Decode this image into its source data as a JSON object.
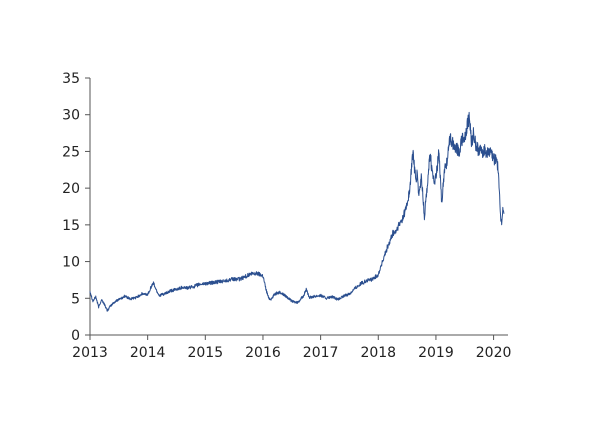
{
  "chart_data": {
    "type": "line",
    "title": "",
    "xlabel": "",
    "ylabel": "",
    "xlim": [
      2013,
      2020.25
    ],
    "ylim": [
      0,
      35
    ],
    "x_ticks": [
      "2013",
      "2014",
      "2015",
      "2016",
      "2017",
      "2018",
      "2019",
      "2020"
    ],
    "y_ticks": [
      "0",
      "5",
      "10",
      "15",
      "20",
      "25",
      "30",
      "35"
    ],
    "grid": false,
    "legend": "none",
    "series": [
      {
        "color": "#2b4f8f",
        "x": [
          2013.0,
          2013.05,
          2013.1,
          2013.15,
          2013.2,
          2013.25,
          2013.3,
          2013.35,
          2013.4,
          2013.45,
          2013.5,
          2013.55,
          2013.6,
          2013.7,
          2013.8,
          2013.9,
          2014.0,
          2014.05,
          2014.1,
          2014.15,
          2014.2,
          2014.3,
          2014.4,
          2014.5,
          2014.6,
          2014.7,
          2014.8,
          2014.9,
          2015.0,
          2015.1,
          2015.2,
          2015.3,
          2015.4,
          2015.5,
          2015.6,
          2015.7,
          2015.8,
          2015.9,
          2016.0,
          2016.05,
          2016.1,
          2016.15,
          2016.2,
          2016.3,
          2016.4,
          2016.5,
          2016.6,
          2016.7,
          2016.75,
          2016.8,
          2016.9,
          2017.0,
          2017.1,
          2017.2,
          2017.3,
          2017.4,
          2017.5,
          2017.6,
          2017.7,
          2017.8,
          2017.9,
          2018.0,
          2018.05,
          2018.1,
          2018.15,
          2018.2,
          2018.25,
          2018.3,
          2018.35,
          2018.4,
          2018.45,
          2018.5,
          2018.55,
          2018.6,
          2018.65,
          2018.68,
          2018.7,
          2018.75,
          2018.8,
          2018.85,
          2018.9,
          2018.95,
          2019.0,
          2019.05,
          2019.1,
          2019.15,
          2019.2,
          2019.25,
          2019.3,
          2019.35,
          2019.4,
          2019.45,
          2019.5,
          2019.55,
          2019.58,
          2019.62,
          2019.65,
          2019.7,
          2019.75,
          2019.8,
          2019.85,
          2019.9,
          2019.95,
          2020.0,
          2020.05,
          2020.08,
          2020.1,
          2020.12,
          2020.14,
          2020.16,
          2020.18
        ],
        "y": [
          6.0,
          4.6,
          5.2,
          3.8,
          4.8,
          4.2,
          3.3,
          3.9,
          4.3,
          4.6,
          4.9,
          5.0,
          5.3,
          4.9,
          5.1,
          5.6,
          5.5,
          6.4,
          7.1,
          6.1,
          5.4,
          5.6,
          6.0,
          6.2,
          6.5,
          6.4,
          6.6,
          6.9,
          7.0,
          7.1,
          7.2,
          7.3,
          7.5,
          7.6,
          7.6,
          8.0,
          8.3,
          8.4,
          8.1,
          6.3,
          5.0,
          4.9,
          5.6,
          5.8,
          5.3,
          4.6,
          4.4,
          5.3,
          6.2,
          5.1,
          5.3,
          5.4,
          5.0,
          5.2,
          4.8,
          5.3,
          5.6,
          6.4,
          7.0,
          7.4,
          7.6,
          8.2,
          9.5,
          10.5,
          11.8,
          12.6,
          13.8,
          14.0,
          14.8,
          15.5,
          16.5,
          17.8,
          20.0,
          25.0,
          21.0,
          22.0,
          18.8,
          21.5,
          16.0,
          20.5,
          24.8,
          21.0,
          21.3,
          24.8,
          18.0,
          22.5,
          24.0,
          27.0,
          26.0,
          25.5,
          25.0,
          26.5,
          26.8,
          28.8,
          29.5,
          26.2,
          27.5,
          25.5,
          25.2,
          24.9,
          25.3,
          24.6,
          25.0,
          23.9,
          24.2,
          22.5,
          19.8,
          16.0,
          15.4,
          16.8,
          16.5
        ]
      }
    ]
  }
}
